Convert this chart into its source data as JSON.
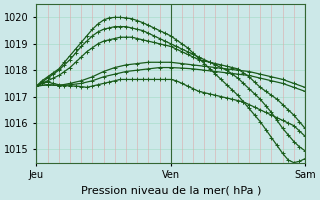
{
  "bg_color": "#cce8e8",
  "grid_color_h": "#aaddcc",
  "grid_color_v": "#ddaaaa",
  "line_color": "#1a5c1a",
  "ylim": [
    1014.5,
    1020.5
  ],
  "yticks": [
    1015,
    1016,
    1017,
    1018,
    1019,
    1020
  ],
  "xlabel": "Pression niveau de la mer( hPa )",
  "day_labels": [
    "Jeu",
    "Ven",
    "Sam"
  ],
  "day_positions": [
    0,
    24,
    48
  ],
  "tick_fontsize": 7,
  "xlabel_fontsize": 8,
  "series": [
    {
      "x": [
        0,
        1,
        2,
        3,
        4,
        5,
        6,
        7,
        8,
        9,
        10,
        11,
        12,
        13,
        14,
        15,
        16,
        17,
        18,
        19,
        20,
        21,
        22,
        23,
        24,
        25,
        26,
        27,
        28,
        29,
        30,
        31,
        32,
        33,
        34,
        35,
        36,
        37,
        38,
        39,
        40,
        41,
        42,
        43,
        44,
        45,
        46,
        47,
        48
      ],
      "y": [
        1017.4,
        1017.5,
        1017.55,
        1017.5,
        1017.45,
        1017.42,
        1017.4,
        1017.4,
        1017.38,
        1017.35,
        1017.4,
        1017.45,
        1017.5,
        1017.55,
        1017.6,
        1017.65,
        1017.65,
        1017.65,
        1017.65,
        1017.65,
        1017.65,
        1017.65,
        1017.65,
        1017.65,
        1017.65,
        1017.6,
        1017.5,
        1017.4,
        1017.3,
        1017.2,
        1017.15,
        1017.1,
        1017.05,
        1017.0,
        1016.95,
        1016.9,
        1016.85,
        1016.8,
        1016.7,
        1016.6,
        1016.5,
        1016.4,
        1016.3,
        1016.2,
        1016.1,
        1016.0,
        1015.9,
        1015.7,
        1015.5
      ]
    },
    {
      "x": [
        0,
        2,
        4,
        6,
        8,
        10,
        12,
        14,
        16,
        18,
        20,
        22,
        24,
        26,
        28,
        30,
        32,
        34,
        36,
        38,
        40,
        42,
        44,
        46,
        48
      ],
      "y": [
        1017.4,
        1017.45,
        1017.42,
        1017.45,
        1017.5,
        1017.6,
        1017.75,
        1017.85,
        1017.95,
        1018.0,
        1018.05,
        1018.1,
        1018.1,
        1018.08,
        1018.05,
        1018.0,
        1017.95,
        1017.9,
        1017.85,
        1017.8,
        1017.7,
        1017.6,
        1017.5,
        1017.35,
        1017.2
      ]
    },
    {
      "x": [
        0,
        2,
        4,
        6,
        8,
        10,
        12,
        14,
        16,
        18,
        20,
        22,
        24,
        26,
        28,
        30,
        32,
        34,
        36,
        38,
        40,
        42,
        44,
        46,
        48
      ],
      "y": [
        1017.4,
        1017.45,
        1017.42,
        1017.5,
        1017.6,
        1017.75,
        1017.95,
        1018.1,
        1018.2,
        1018.25,
        1018.3,
        1018.3,
        1018.3,
        1018.25,
        1018.2,
        1018.15,
        1018.1,
        1018.05,
        1018.0,
        1017.95,
        1017.85,
        1017.75,
        1017.65,
        1017.5,
        1017.35
      ]
    },
    {
      "x": [
        0,
        1,
        2,
        3,
        4,
        5,
        6,
        7,
        8,
        9,
        10,
        11,
        12,
        13,
        14,
        15,
        16,
        17,
        18,
        19,
        20,
        21,
        22,
        23,
        24,
        25,
        26,
        27,
        28,
        29,
        30,
        31,
        32,
        33,
        34,
        35,
        36,
        37,
        38,
        39,
        40,
        41,
        42,
        43,
        44,
        45,
        46,
        47,
        48
      ],
      "y": [
        1017.4,
        1017.5,
        1017.6,
        1017.7,
        1017.8,
        1017.95,
        1018.1,
        1018.3,
        1018.5,
        1018.7,
        1018.85,
        1019.0,
        1019.1,
        1019.15,
        1019.2,
        1019.25,
        1019.25,
        1019.25,
        1019.2,
        1019.15,
        1019.1,
        1019.05,
        1019.0,
        1018.95,
        1018.9,
        1018.8,
        1018.7,
        1018.6,
        1018.5,
        1018.4,
        1018.35,
        1018.3,
        1018.25,
        1018.2,
        1018.15,
        1018.1,
        1018.05,
        1017.9,
        1017.75,
        1017.55,
        1017.35,
        1017.2,
        1017.05,
        1016.9,
        1016.7,
        1016.5,
        1016.3,
        1016.05,
        1015.8
      ]
    },
    {
      "x": [
        0,
        1,
        2,
        3,
        4,
        5,
        6,
        7,
        8,
        9,
        10,
        11,
        12,
        13,
        14,
        15,
        16,
        17,
        18,
        19,
        20,
        21,
        22,
        23,
        24,
        25,
        26,
        27,
        28,
        29,
        30,
        31,
        32,
        33,
        34,
        35,
        36,
        37,
        38,
        39,
        40,
        41,
        42,
        43,
        44,
        45,
        46,
        47,
        48
      ],
      "y": [
        1017.4,
        1017.55,
        1017.7,
        1017.85,
        1018.0,
        1018.2,
        1018.4,
        1018.65,
        1018.9,
        1019.1,
        1019.3,
        1019.45,
        1019.55,
        1019.6,
        1019.65,
        1019.65,
        1019.65,
        1019.6,
        1019.55,
        1019.5,
        1019.4,
        1019.3,
        1019.2,
        1019.1,
        1019.0,
        1018.9,
        1018.8,
        1018.7,
        1018.6,
        1018.5,
        1018.4,
        1018.3,
        1018.2,
        1018.1,
        1018.0,
        1017.85,
        1017.7,
        1017.5,
        1017.3,
        1017.1,
        1016.9,
        1016.65,
        1016.4,
        1016.1,
        1015.8,
        1015.55,
        1015.3,
        1015.1,
        1014.95
      ]
    },
    {
      "x": [
        0,
        1,
        2,
        3,
        4,
        5,
        6,
        7,
        8,
        9,
        10,
        11,
        12,
        13,
        14,
        15,
        16,
        17,
        18,
        19,
        20,
        21,
        22,
        23,
        24,
        25,
        26,
        27,
        28,
        29,
        30,
        31,
        32,
        33,
        34,
        35,
        36,
        37,
        38,
        39,
        40,
        41,
        42,
        43,
        44,
        45,
        46,
        47,
        48
      ],
      "y": [
        1017.4,
        1017.6,
        1017.75,
        1017.9,
        1018.05,
        1018.3,
        1018.55,
        1018.8,
        1019.05,
        1019.3,
        1019.55,
        1019.75,
        1019.9,
        1019.98,
        1020.0,
        1020.0,
        1019.98,
        1019.95,
        1019.88,
        1019.8,
        1019.7,
        1019.6,
        1019.5,
        1019.4,
        1019.3,
        1019.15,
        1019.0,
        1018.85,
        1018.65,
        1018.45,
        1018.25,
        1018.05,
        1017.85,
        1017.65,
        1017.45,
        1017.25,
        1017.05,
        1016.8,
        1016.55,
        1016.3,
        1016.05,
        1015.75,
        1015.45,
        1015.15,
        1014.85,
        1014.6,
        1014.5,
        1014.55,
        1014.65
      ]
    }
  ]
}
